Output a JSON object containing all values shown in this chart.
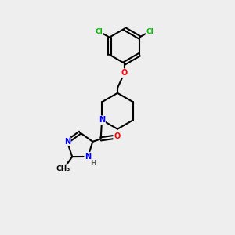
{
  "background_color": "#eeeeee",
  "bond_color": "#000000",
  "atom_colors": {
    "Cl": "#00bb00",
    "O": "#ff0000",
    "N": "#0000ff",
    "C": "#000000",
    "H": "#555555"
  },
  "figsize": [
    3.0,
    3.0
  ],
  "dpi": 100
}
